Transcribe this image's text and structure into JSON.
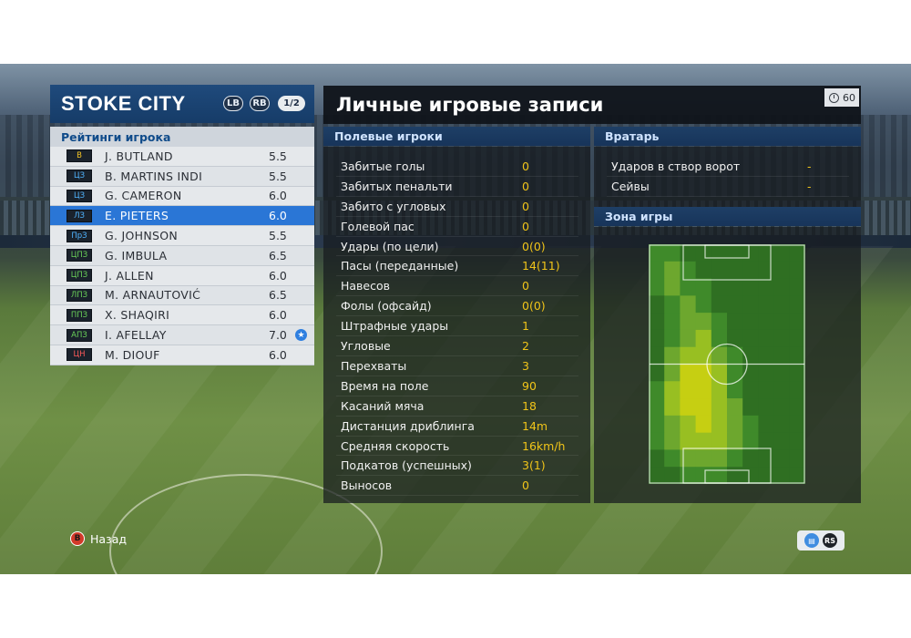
{
  "team": {
    "name": "STOKE CITY",
    "lb": "LB",
    "rb": "RB",
    "page": "1/2"
  },
  "ratings_header": "Рейтинги игрока",
  "players": [
    {
      "pos": "В",
      "pos_type": "gk",
      "name": "J. BUTLAND",
      "rating": "5.5"
    },
    {
      "pos": "ЦЗ",
      "pos_type": "df",
      "name": "B. MARTINS INDI",
      "rating": "5.5"
    },
    {
      "pos": "ЦЗ",
      "pos_type": "df",
      "name": "G. CAMERON",
      "rating": "6.0"
    },
    {
      "pos": "ЛЗ",
      "pos_type": "df",
      "name": "E. PIETERS",
      "rating": "6.0",
      "selected": true
    },
    {
      "pos": "ПрЗ",
      "pos_type": "df",
      "name": "G. JOHNSON",
      "rating": "5.5"
    },
    {
      "pos": "ЦПЗ",
      "pos_type": "mf",
      "name": "G. IMBULA",
      "rating": "6.5"
    },
    {
      "pos": "ЦПЗ",
      "pos_type": "mf",
      "name": "J. ALLEN",
      "rating": "6.0"
    },
    {
      "pos": "ЛПЗ",
      "pos_type": "mf",
      "name": "M. ARNAUTOVIĆ",
      "rating": "6.5"
    },
    {
      "pos": "ППЗ",
      "pos_type": "mf",
      "name": "X. SHAQIRI",
      "rating": "6.0"
    },
    {
      "pos": "АПЗ",
      "pos_type": "mf",
      "name": "I. AFELLAY",
      "rating": "7.0",
      "star": "★"
    },
    {
      "pos": "ЦН",
      "pos_type": "fw",
      "name": "M. DIOUF",
      "rating": "6.0"
    }
  ],
  "main": {
    "title": "Личные игровые записи",
    "timer": "60"
  },
  "field_players": {
    "header": "Полевые игроки",
    "stats": [
      {
        "label": "Забитые голы",
        "value": "0"
      },
      {
        "label": "Забитых пенальти",
        "value": "0"
      },
      {
        "label": "Забито с угловых",
        "value": "0"
      },
      {
        "label": "Голевой пас",
        "value": "0"
      },
      {
        "label": "Удары (по цели)",
        "value": "0(0)"
      },
      {
        "label": "Пасы (переданные)",
        "value": "14(11)"
      },
      {
        "label": "Навесов",
        "value": "0"
      },
      {
        "label": "Фолы (офсайд)",
        "value": "0(0)"
      },
      {
        "label": "Штрафные удары",
        "value": "1"
      },
      {
        "label": "Угловые",
        "value": "2"
      },
      {
        "label": "Перехваты",
        "value": "3"
      },
      {
        "label": "Время на поле",
        "value": "90"
      },
      {
        "label": "Касаний мяча",
        "value": "18"
      },
      {
        "label": "Дистанция дриблинга",
        "value": "14m"
      },
      {
        "label": "Средняя скорость",
        "value": "16km/h"
      },
      {
        "label": "Подкатов (успешных)",
        "value": "3(1)"
      },
      {
        "label": "Выносов",
        "value": "0"
      }
    ]
  },
  "goalkeeper": {
    "header": "Вратарь",
    "stats": [
      {
        "label": "Ударов в створ ворот",
        "value": "-"
      },
      {
        "label": "Сейвы",
        "value": "-"
      }
    ]
  },
  "zone": {
    "header": "Зона игры"
  },
  "footer": {
    "back_key": "B",
    "back_label": "Назад",
    "rs_label": "RS"
  },
  "colors": {
    "accent_blue": "#2a76d6",
    "value_yellow": "#f0c419",
    "header_blue": "#1f4a7c"
  }
}
